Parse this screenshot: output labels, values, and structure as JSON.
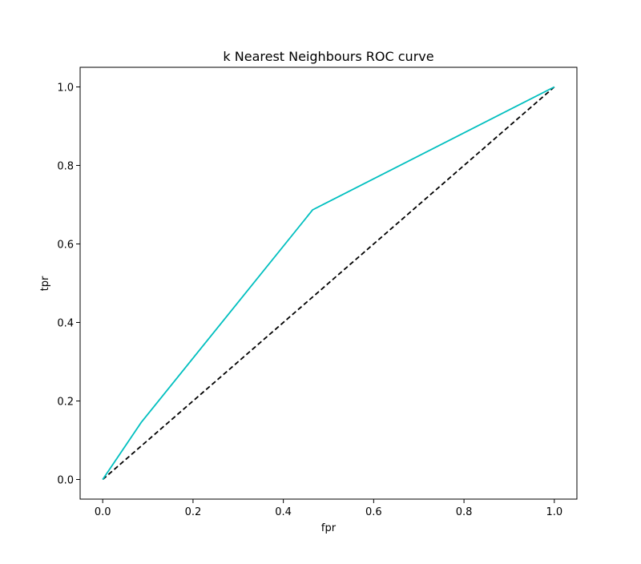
{
  "chart_data": {
    "type": "line",
    "title": "k Nearest Neighbours ROC curve",
    "xlabel": "fpr",
    "ylabel": "tpr",
    "xlim": [
      -0.05,
      1.05
    ],
    "ylim": [
      -0.05,
      1.05
    ],
    "x_ticks": [
      0.0,
      0.2,
      0.4,
      0.6,
      0.8,
      1.0
    ],
    "y_ticks": [
      0.0,
      0.2,
      0.4,
      0.6,
      0.8,
      1.0
    ],
    "x_tick_labels": [
      "0.0",
      "0.2",
      "0.4",
      "0.6",
      "0.8",
      "1.0"
    ],
    "y_tick_labels": [
      "0.0",
      "0.2",
      "0.4",
      "0.6",
      "0.8",
      "1.0"
    ],
    "grid": false,
    "series": [
      {
        "style": "solid",
        "color": "#00bfbf",
        "x": [
          0.0,
          0.085,
          0.465,
          1.0
        ],
        "y": [
          0.0,
          0.145,
          0.687,
          1.0
        ]
      },
      {
        "style": "dashed",
        "color": "#000000",
        "x": [
          0.0,
          1.0
        ],
        "y": [
          0.0,
          1.0
        ]
      }
    ]
  }
}
